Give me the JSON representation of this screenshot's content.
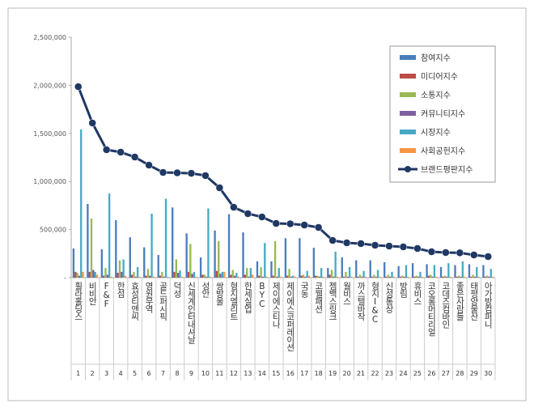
{
  "chart_data": {
    "type": "bar-line",
    "categories": [
      "휠라홀딩스",
      "비비안",
      "F&F",
      "한섬",
      "효성티앤씨",
      "영원무역",
      "골드퍼시픽",
      "덕성",
      "신세계인터내셔날",
      "성안",
      "쌍방울",
      "형지엘리트",
      "한세실업",
      "BYC",
      "제이에스티나",
      "제이에스코퍼레이션",
      "국동",
      "코웰패션",
      "젬백스링크",
      "월비스",
      "까스텔바작",
      "형지I&C",
      "신성통상",
      "방림",
      "휴비스",
      "코오롱머티리얼",
      "코데즈컴바인",
      "좋은사람들",
      "태평양물산",
      "아가방컴퍼니"
    ],
    "ranks": [
      1,
      2,
      3,
      4,
      5,
      6,
      7,
      8,
      9,
      10,
      11,
      12,
      13,
      14,
      15,
      16,
      17,
      18,
      19,
      20,
      21,
      22,
      23,
      24,
      25,
      26,
      27,
      28,
      29,
      30
    ],
    "series": [
      {
        "name": "참여지수",
        "color": "#4a7ebb",
        "values": [
          303000,
          766000,
          295000,
          598000,
          420000,
          315000,
          235000,
          730000,
          460000,
          210000,
          490000,
          660000,
          470000,
          170000,
          170000,
          410000,
          410000,
          310000,
          100000,
          210000,
          180000,
          180000,
          160000,
          120000,
          150000,
          140000,
          110000,
          130000,
          140000,
          130000
        ]
      },
      {
        "name": "미디어지수",
        "color": "#be4b48",
        "values": [
          60000,
          60000,
          20000,
          50000,
          30000,
          20000,
          20000,
          60000,
          60000,
          30000,
          70000,
          30000,
          30000,
          20000,
          20000,
          20000,
          20000,
          20000,
          30000,
          10000,
          10000,
          10000,
          10000,
          10000,
          10000,
          20000,
          10000,
          10000,
          10000,
          10000
        ]
      },
      {
        "name": "소통지수",
        "color": "#98b954",
        "values": [
          50000,
          614000,
          100000,
          180000,
          60000,
          90000,
          60000,
          190000,
          350000,
          30000,
          380000,
          80000,
          100000,
          110000,
          380000,
          90000,
          30000,
          20000,
          80000,
          60000,
          30000,
          30000,
          30000,
          20000,
          20000,
          30000,
          20000,
          20000,
          30000,
          20000
        ]
      },
      {
        "name": "커뮤니티지수",
        "color": "#7d60a0",
        "values": [
          20000,
          80000,
          30000,
          60000,
          10000,
          20000,
          10000,
          50000,
          40000,
          10000,
          40000,
          20000,
          10000,
          10000,
          10000,
          10000,
          10000,
          10000,
          10000,
          10000,
          10000,
          10000,
          10000,
          10000,
          10000,
          10000,
          10000,
          10000,
          10000,
          10000
        ]
      },
      {
        "name": "시장지수",
        "color": "#46aac5",
        "values": [
          1540000,
          60000,
          875000,
          190000,
          110000,
          665000,
          820000,
          75000,
          60000,
          720000,
          60000,
          50000,
          100000,
          360000,
          100000,
          20000,
          70000,
          100000,
          270000,
          110000,
          70000,
          80000,
          60000,
          130000,
          60000,
          130000,
          150000,
          170000,
          110000,
          90000
        ]
      },
      {
        "name": "사회공헌지수",
        "color": "#f79646",
        "values": [
          60000,
          30000,
          10000,
          20000,
          10000,
          10000,
          10000,
          10000,
          10000,
          10000,
          60000,
          10000,
          30000,
          10000,
          10000,
          10000,
          20000,
          10000,
          10000,
          10000,
          10000,
          10000,
          10000,
          10000,
          10000,
          10000,
          10000,
          10000,
          10000,
          10000
        ]
      },
      {
        "name": "브랜드평판지수",
        "color": "#1f3864",
        "line": true,
        "values": [
          1986000,
          1608000,
          1330000,
          1305000,
          1254000,
          1170000,
          1094000,
          1090000,
          1085000,
          1061000,
          934000,
          732000,
          665000,
          631000,
          564000,
          560000,
          547000,
          522000,
          387000,
          362000,
          354000,
          337000,
          328000,
          320000,
          303000,
          269000,
          261000,
          258000,
          236000,
          219000
        ]
      }
    ],
    "ylim": [
      0,
      2500000
    ],
    "yticks": [
      {
        "value": 0,
        "label": "-"
      },
      {
        "value": 500000,
        "label": "500,000"
      },
      {
        "value": 1000000,
        "label": "1,000,000"
      },
      {
        "value": 1500000,
        "label": "1,500,000"
      },
      {
        "value": 2000000,
        "label": "2,000,000"
      },
      {
        "value": 2500000,
        "label": "2,500,000"
      }
    ]
  }
}
